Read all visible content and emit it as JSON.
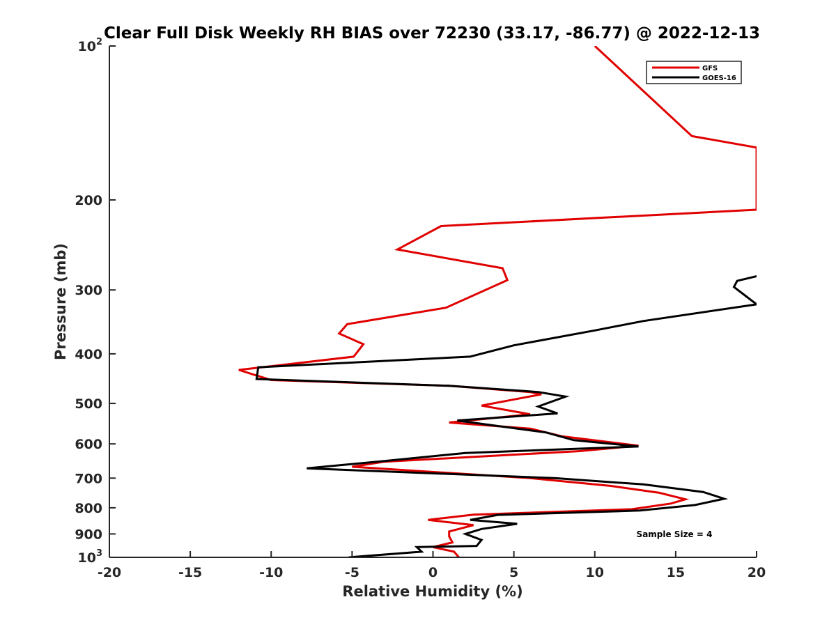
{
  "chart_data": {
    "type": "line",
    "title": "Clear Full Disk Weekly RH BIAS over 72230 (33.17, -86.77) @ 2022-12-13",
    "xlabel": "Relative Humidity (%)",
    "ylabel": "Pressure (mb)",
    "xlim": [
      -20,
      20
    ],
    "ylim": [
      100,
      1000
    ],
    "y_scale": "log",
    "y_reversed": true,
    "grid": false,
    "legend_position": "top-right",
    "x_ticks": [
      "-20",
      "-15",
      "-10",
      "-5",
      "0",
      "5",
      "10",
      "15",
      "20"
    ],
    "y_ticks": [
      {
        "value": 100,
        "base": "10",
        "exp": "2"
      },
      {
        "value": 200,
        "label": "200"
      },
      {
        "value": 300,
        "label": "300"
      },
      {
        "value": 400,
        "label": "400"
      },
      {
        "value": 500,
        "label": "500"
      },
      {
        "value": 600,
        "label": "600"
      },
      {
        "value": 700,
        "label": "700"
      },
      {
        "value": 800,
        "label": "800"
      },
      {
        "value": 900,
        "label": "900"
      },
      {
        "value": 1000,
        "base": "10",
        "exp": "3"
      }
    ],
    "annotation": "Sample Size = 4",
    "series": [
      {
        "name": "GFS",
        "color": "#e00000",
        "points": [
          [
            10.0,
            100
          ],
          [
            16.0,
            150
          ],
          [
            20.0,
            158
          ],
          [
            20.0,
            209
          ],
          [
            0.5,
            225
          ],
          [
            -2.2,
            250
          ],
          [
            4.3,
            272
          ],
          [
            4.6,
            287
          ],
          [
            0.8,
            325
          ],
          [
            -5.3,
            350
          ],
          [
            -5.8,
            365
          ],
          [
            -4.3,
            383
          ],
          [
            -4.9,
            405
          ],
          [
            -12.0,
            430
          ],
          [
            -11.0,
            440
          ],
          [
            -10.0,
            450
          ],
          [
            1.0,
            462
          ],
          [
            6.0,
            475
          ],
          [
            6.7,
            480
          ],
          [
            3.0,
            505
          ],
          [
            6.0,
            525
          ],
          [
            1.0,
            545
          ],
          [
            6.0,
            560
          ],
          [
            8.0,
            580
          ],
          [
            12.7,
            605
          ],
          [
            9.0,
            620
          ],
          [
            -3.0,
            650
          ],
          [
            -5.0,
            665
          ],
          [
            6.0,
            700
          ],
          [
            11.0,
            725
          ],
          [
            14.0,
            748
          ],
          [
            15.6,
            770
          ],
          [
            14.7,
            785
          ],
          [
            12.3,
            805
          ],
          [
            2.5,
            825
          ],
          [
            -0.3,
            845
          ],
          [
            2.5,
            865
          ],
          [
            1.0,
            890
          ],
          [
            1.0,
            910
          ],
          [
            1.2,
            935
          ],
          [
            0.0,
            955
          ],
          [
            1.3,
            975
          ],
          [
            1.6,
            1000
          ]
        ]
      },
      {
        "name": "GOES-16",
        "color": "#000000",
        "points": [
          [
            20.0,
            282
          ],
          [
            18.8,
            288
          ],
          [
            18.6,
            296
          ],
          [
            20.0,
            320
          ],
          [
            13.0,
            345
          ],
          [
            10.0,
            360
          ],
          [
            5.0,
            385
          ],
          [
            2.3,
            405
          ],
          [
            -10.8,
            425
          ],
          [
            -10.9,
            448
          ],
          [
            1.0,
            462
          ],
          [
            6.5,
            475
          ],
          [
            8.2,
            485
          ],
          [
            6.5,
            507
          ],
          [
            7.7,
            523
          ],
          [
            1.5,
            540
          ],
          [
            7.0,
            570
          ],
          [
            8.7,
            590
          ],
          [
            12.7,
            607
          ],
          [
            2.0,
            625
          ],
          [
            -3.0,
            648
          ],
          [
            -7.8,
            670
          ],
          [
            -2.5,
            680
          ],
          [
            7.5,
            700
          ],
          [
            13.0,
            720
          ],
          [
            16.7,
            745
          ],
          [
            18.0,
            768
          ],
          [
            16.2,
            790
          ],
          [
            12.8,
            810
          ],
          [
            4.0,
            826
          ],
          [
            2.3,
            845
          ],
          [
            5.2,
            860
          ],
          [
            3.0,
            880
          ],
          [
            2.0,
            900
          ],
          [
            3.0,
            925
          ],
          [
            2.7,
            950
          ],
          [
            -1.0,
            955
          ],
          [
            -0.7,
            975
          ],
          [
            -5.2,
            1000
          ]
        ]
      }
    ]
  }
}
